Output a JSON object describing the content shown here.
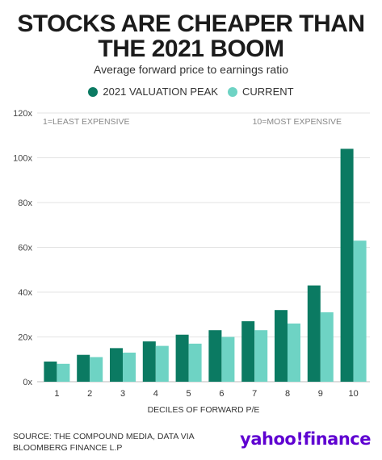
{
  "title_line1": "STOCKS ARE CHEAPER THAN",
  "title_line2": "THE 2021 BOOM",
  "subtitle": "Average forward price to earnings ratio",
  "source": "SOURCE: THE COMPOUND MEDIA, DATA VIA BLOOMBERG FINANCE L.P",
  "logo_text": "yahoo!finance",
  "colors": {
    "peak": "#0b7a62",
    "current": "#6ed3c4",
    "brand": "#5f01d1"
  },
  "chart_data": {
    "type": "bar",
    "title": "STOCKS ARE CHEAPER THAN THE 2021 BOOM",
    "subtitle": "Average forward price to earnings ratio",
    "xlabel": "DECILES OF FORWARD P/E",
    "ylabel": "",
    "categories": [
      "1",
      "2",
      "3",
      "4",
      "5",
      "6",
      "7",
      "8",
      "9",
      "10"
    ],
    "series": [
      {
        "name": "2021 VALUATION PEAK",
        "values": [
          9,
          12,
          15,
          18,
          21,
          23,
          27,
          32,
          43,
          104
        ]
      },
      {
        "name": "CURRENT",
        "values": [
          8,
          11,
          13,
          16,
          17,
          20,
          23,
          26,
          31,
          63
        ]
      }
    ],
    "ylim": [
      0,
      120
    ],
    "yticks": [
      0,
      20,
      40,
      60,
      80,
      100,
      120
    ],
    "ytick_labels": [
      "0x",
      "20x",
      "40x",
      "60x",
      "80x",
      "100x",
      "120x"
    ],
    "annotations": [
      "1=LEAST EXPENSIVE",
      "10=MOST EXPENSIVE"
    ],
    "grid": true,
    "legend_position": "top-center"
  }
}
